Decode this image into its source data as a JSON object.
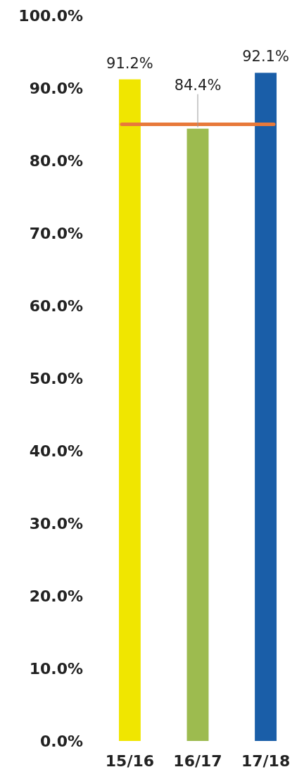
{
  "chart_data": {
    "type": "bar",
    "categories": [
      "15/16",
      "16/17",
      "17/18"
    ],
    "values": [
      91.2,
      84.4,
      92.1
    ],
    "colors": [
      "#f0e600",
      "#9dbb4f",
      "#1a5ea8"
    ],
    "value_labels": [
      "91.2%",
      "84.4%",
      "92.1%"
    ],
    "ylim": [
      0,
      100
    ],
    "yticks": [
      {
        "value": 0,
        "label": "0.0%"
      },
      {
        "value": 10,
        "label": "10.0%"
      },
      {
        "value": 20,
        "label": "20.0%"
      },
      {
        "value": 30,
        "label": "30.0%"
      },
      {
        "value": 40,
        "label": "40.0%"
      },
      {
        "value": 50,
        "label": "50.0%"
      },
      {
        "value": 60,
        "label": "60.0%"
      },
      {
        "value": 70,
        "label": "70.0%"
      },
      {
        "value": 80,
        "label": "80.0%"
      },
      {
        "value": 90,
        "label": "90.0%"
      },
      {
        "value": 100,
        "label": "100.0%"
      }
    ],
    "ref_lines": [
      {
        "axis": "y",
        "value": 85,
        "color": "#e8793a"
      }
    ]
  }
}
